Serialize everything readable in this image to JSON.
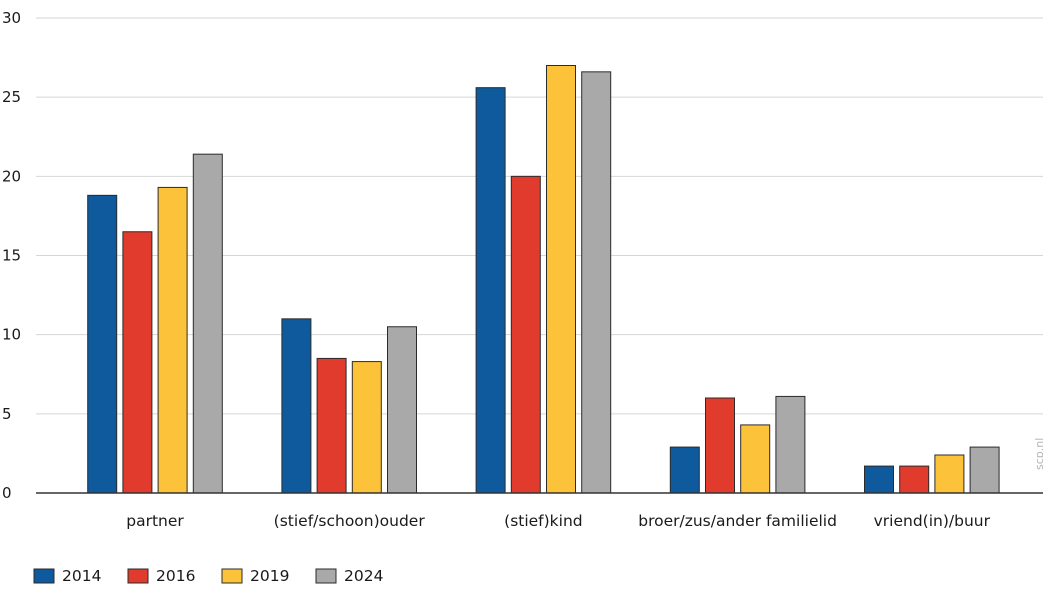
{
  "chart_data": {
    "type": "bar",
    "categories": [
      "partner",
      "(stief/schoon)ouder",
      "(stief)kind",
      "broer/zus/ander familielid",
      "vriend(in)/buur"
    ],
    "series": [
      {
        "name": "2014",
        "color": "#0e5a9c",
        "values": [
          18.8,
          11.0,
          25.6,
          2.9,
          1.7
        ]
      },
      {
        "name": "2016",
        "color": "#e03b2c",
        "values": [
          16.5,
          8.5,
          20.0,
          6.0,
          1.7
        ]
      },
      {
        "name": "2019",
        "color": "#fcc33a",
        "values": [
          19.3,
          8.3,
          27.0,
          4.3,
          2.4
        ]
      },
      {
        "name": "2024",
        "color": "#a9a9a9",
        "values": [
          21.4,
          10.5,
          26.6,
          6.1,
          2.9
        ]
      }
    ],
    "ylim": [
      0,
      30
    ],
    "yticks": [
      0,
      5,
      10,
      15,
      20,
      25,
      30
    ],
    "grid": true,
    "legend": "bottom-left",
    "title": "",
    "xlabel": "",
    "ylabel": ""
  },
  "watermark": "scp.nl"
}
